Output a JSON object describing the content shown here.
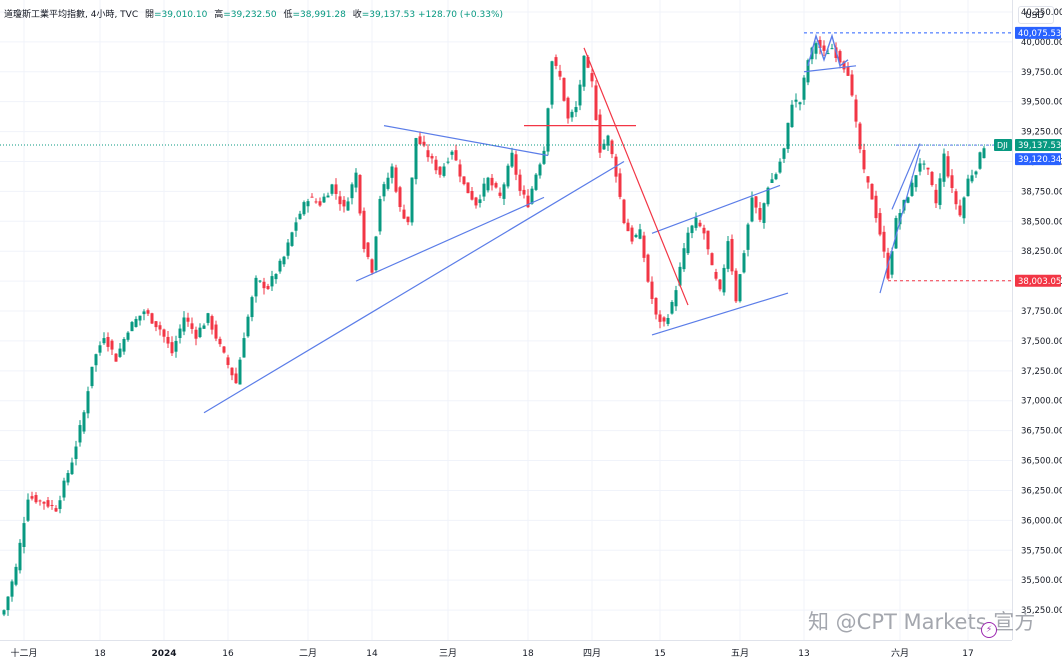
{
  "header": {
    "symbol_line": "道瓊斯工業平均指數, 4小時, TVC",
    "open_label": "開",
    "open_value": "=39,010.10",
    "high_label": "高",
    "high_value": "=39,232.50",
    "low_label": "低",
    "low_value": "=38,991.28",
    "close_label": "收",
    "close_value": "=39,137.53",
    "change": "+128.70 (+0.33%)"
  },
  "currency_button": "USD",
  "watermark": "知 @CPT Markets 宣方",
  "colors": {
    "up": "#089981",
    "down": "#f23645",
    "trendline_blue": "#5b7de8",
    "trendline_red": "#f23645",
    "price_badge": "#089981",
    "blue_badge": "#2962ff",
    "red_badge": "#f23645",
    "grid": "#f0f3fa"
  },
  "chart_data": {
    "type": "candlestick",
    "symbol": "DJI",
    "y_ticks": [
      35250,
      35500,
      35750,
      36000,
      36250,
      36500,
      36750,
      37000,
      37250,
      37500,
      37750,
      38000,
      38250,
      38500,
      38750,
      39000,
      39250,
      39500,
      39750,
      40000,
      40250
    ],
    "y_tick_labels": [
      "35,250.00",
      "35,500.00",
      "35,750.00",
      "36,000.00",
      "36,250.00",
      "36,500.00",
      "36,750.00",
      "37,000.00",
      "37,250.00",
      "37,500.00",
      "37,750.00",
      "38,000.00",
      "38,250.00",
      "38,500.00",
      "38,750.00",
      "39,000.00",
      "39,250.00",
      "39,500.00",
      "39,750.00",
      "40,000.00",
      "40,250.00"
    ],
    "ylim": [
      35000,
      40350
    ],
    "x_labels": [
      {
        "label": "十二月",
        "idx": 5
      },
      {
        "label": "18",
        "idx": 24
      },
      {
        "label": "2024",
        "idx": 40
      },
      {
        "label": "16",
        "idx": 56
      },
      {
        "label": "二月",
        "idx": 76
      },
      {
        "label": "14",
        "idx": 92
      },
      {
        "label": "三月",
        "idx": 111
      },
      {
        "label": "18",
        "idx": 131
      },
      {
        "label": "四月",
        "idx": 147
      },
      {
        "label": "15",
        "idx": 164
      },
      {
        "label": "五月",
        "idx": 184
      },
      {
        "label": "13",
        "idx": 200
      },
      {
        "label": "六月",
        "idx": 224
      },
      {
        "label": "17",
        "idx": 241
      }
    ],
    "anchors": [
      [
        0,
        35250
      ],
      [
        3,
        35600
      ],
      [
        6,
        36200
      ],
      [
        10,
        36150
      ],
      [
        13,
        36100
      ],
      [
        17,
        36500
      ],
      [
        20,
        36900
      ],
      [
        22,
        37300
      ],
      [
        25,
        37550
      ],
      [
        28,
        37350
      ],
      [
        31,
        37600
      ],
      [
        35,
        37750
      ],
      [
        39,
        37600
      ],
      [
        42,
        37400
      ],
      [
        45,
        37700
      ],
      [
        48,
        37550
      ],
      [
        51,
        37700
      ],
      [
        54,
        37450
      ],
      [
        58,
        37150
      ],
      [
        60,
        37550
      ],
      [
        63,
        38000
      ],
      [
        66,
        37950
      ],
      [
        70,
        38200
      ],
      [
        73,
        38500
      ],
      [
        76,
        38700
      ],
      [
        79,
        38650
      ],
      [
        82,
        38800
      ],
      [
        85,
        38600
      ],
      [
        88,
        38900
      ],
      [
        90,
        38300
      ],
      [
        92,
        38100
      ],
      [
        94,
        38700
      ],
      [
        97,
        38950
      ],
      [
        99,
        38600
      ],
      [
        101,
        38500
      ],
      [
        103,
        39200
      ],
      [
        106,
        39050
      ],
      [
        109,
        38900
      ],
      [
        112,
        39100
      ],
      [
        115,
        38800
      ],
      [
        118,
        38650
      ],
      [
        121,
        38850
      ],
      [
        124,
        38700
      ],
      [
        127,
        39050
      ],
      [
        129,
        38750
      ],
      [
        131,
        38650
      ],
      [
        133,
        38900
      ],
      [
        135,
        39100
      ],
      [
        137,
        39850
      ],
      [
        139,
        39700
      ],
      [
        141,
        39350
      ],
      [
        143,
        39450
      ],
      [
        145,
        39850
      ],
      [
        147,
        39650
      ],
      [
        149,
        39100
      ],
      [
        151,
        39200
      ],
      [
        153,
        38900
      ],
      [
        155,
        38500
      ],
      [
        157,
        38350
      ],
      [
        159,
        38400
      ],
      [
        161,
        38000
      ],
      [
        163,
        37700
      ],
      [
        165,
        37650
      ],
      [
        167,
        37800
      ],
      [
        169,
        38100
      ],
      [
        171,
        38400
      ],
      [
        173,
        38500
      ],
      [
        175,
        38400
      ],
      [
        177,
        38100
      ],
      [
        179,
        37900
      ],
      [
        181,
        38350
      ],
      [
        183,
        37850
      ],
      [
        185,
        38250
      ],
      [
        187,
        38700
      ],
      [
        189,
        38500
      ],
      [
        191,
        38800
      ],
      [
        193,
        38900
      ],
      [
        195,
        39100
      ],
      [
        197,
        39500
      ],
      [
        199,
        39500
      ],
      [
        201,
        39850
      ],
      [
        203,
        40000
      ],
      [
        205,
        39900
      ],
      [
        207,
        39950
      ],
      [
        209,
        39850
      ],
      [
        211,
        39750
      ],
      [
        213,
        39300
      ],
      [
        215,
        38900
      ],
      [
        217,
        38700
      ],
      [
        219,
        38400
      ],
      [
        221,
        38050
      ],
      [
        223,
        38500
      ],
      [
        225,
        38650
      ],
      [
        227,
        38800
      ],
      [
        229,
        39000
      ],
      [
        231,
        38900
      ],
      [
        233,
        38650
      ],
      [
        235,
        39050
      ],
      [
        237,
        38750
      ],
      [
        239,
        38550
      ],
      [
        241,
        38850
      ],
      [
        243,
        38950
      ],
      [
        245,
        39137.53
      ]
    ],
    "annotations": {
      "resistance_line": 40075.53,
      "support_line": 38003.05,
      "last_price": 39137.53,
      "ma_value": 39120.34
    },
    "price_labels": {
      "last": "39,137.53",
      "ma": "39,120.34",
      "top": "40,075.53",
      "bottom": "38,003.05",
      "symbol": "DJI"
    },
    "trendlines": {
      "blue": [
        [
          [
            50,
            36900
          ],
          [
            155,
            39000
          ]
        ],
        [
          [
            88,
            38000
          ],
          [
            135,
            38700
          ]
        ],
        [
          [
            95,
            39300
          ],
          [
            136,
            39050
          ]
        ],
        [
          [
            162,
            37550
          ],
          [
            196,
            37900
          ]
        ],
        [
          [
            162,
            38400
          ],
          [
            194,
            38800
          ]
        ],
        [
          [
            200,
            39750
          ],
          [
            213,
            39800
          ]
        ],
        [
          [
            219,
            37900
          ],
          [
            229,
            39100
          ]
        ],
        [
          [
            222,
            38600
          ],
          [
            229,
            39150
          ]
        ]
      ],
      "red": [
        [
          [
            145,
            39950
          ],
          [
            171,
            37800
          ]
        ],
        [
          [
            130,
            39300
          ],
          [
            158,
            39300
          ]
        ]
      ],
      "wave": [
        [
          201,
          39800
        ],
        [
          203,
          40050
        ],
        [
          205,
          39850
        ],
        [
          207,
          40050
        ],
        [
          209,
          39800
        ],
        [
          211,
          39850
        ]
      ]
    },
    "grid": true
  }
}
